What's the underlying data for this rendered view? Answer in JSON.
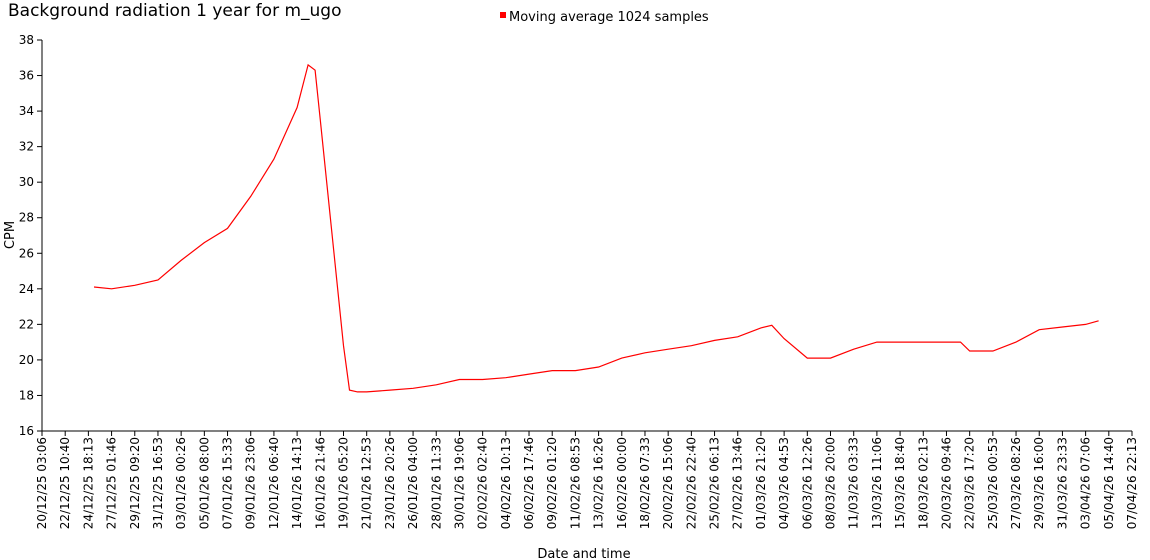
{
  "chart_data": {
    "type": "line",
    "title": "Background radiation 1 year for m_ugo",
    "x_label": "Date and time",
    "y_label": "CPM",
    "series": [
      {
        "name": "Moving average 1024 samples",
        "color": "#ff0000",
        "x": [
          "25/12/25 07:36",
          "27/12/25 01:46",
          "29/12/25 09:20",
          "31/12/25 16:53",
          "03/01/26 00:26",
          "05/01/26 08:00",
          "07/01/26 15:33",
          "09/01/26 23:06",
          "12/01/26 06:40",
          "14/01/26 14:13",
          "15/01/26 16:31",
          "16/01/26 09:19",
          "16/01/26 21:46",
          "19/01/26 05:20",
          "19/01/26 19:44",
          "20/01/26 14:50",
          "21/01/26 12:53",
          "23/01/26 20:26",
          "26/01/26 04:00",
          "28/01/26 11:33",
          "30/01/26 19:06",
          "02/02/26 02:40",
          "04/02/26 10:13",
          "06/02/26 17:46",
          "09/02/26 01:20",
          "11/02/26 08:53",
          "13/02/26 16:26",
          "16/02/26 00:00",
          "18/02/26 07:33",
          "20/02/26 15:06",
          "22/02/26 22:40",
          "25/02/26 06:13",
          "27/02/26 13:46",
          "01/03/26 21:20",
          "02/03/26 23:20",
          "04/03/26 04:53",
          "06/03/26 12:26",
          "08/03/26 20:00",
          "11/03/26 03:33",
          "13/03/26 11:06",
          "15/03/26 18:40",
          "18/03/26 02:13",
          "20/03/26 09:46",
          "21/03/26 19:16",
          "22/03/26 17:20",
          "25/03/26 00:53",
          "27/03/26 08:26",
          "29/03/26 16:00",
          "31/03/26 23:33",
          "03/04/26 07:06",
          "04/04/26 14:13"
        ],
        "values": [
          24.1,
          24.0,
          24.2,
          24.5,
          25.6,
          26.6,
          27.4,
          29.2,
          31.3,
          34.2,
          36.6,
          36.3,
          33.5,
          20.8,
          18.3,
          18.2,
          18.2,
          18.3,
          18.4,
          18.6,
          18.9,
          18.9,
          19.0,
          19.2,
          19.4,
          19.4,
          19.6,
          20.1,
          20.4,
          20.6,
          20.8,
          21.1,
          21.3,
          21.8,
          21.95,
          21.2,
          20.1,
          20.1,
          20.6,
          21.0,
          21.0,
          21.0,
          21.0,
          21.0,
          20.5,
          20.5,
          21.0,
          21.7,
          21.85,
          22.0,
          22.2
        ]
      }
    ],
    "xlim": [
      "20/12/25 03:06",
      "07/04/26 22:13"
    ],
    "xticks": [
      "20/12/25 03:06",
      "22/12/25 10:40",
      "24/12/25 18:13",
      "27/12/25 01:46",
      "29/12/25 09:20",
      "31/12/25 16:53",
      "03/01/26 00:26",
      "05/01/26 08:00",
      "07/01/26 15:33",
      "09/01/26 23:06",
      "12/01/26 06:40",
      "14/01/26 14:13",
      "16/01/26 21:46",
      "19/01/26 05:20",
      "21/01/26 12:53",
      "23/01/26 20:26",
      "26/01/26 04:00",
      "28/01/26 11:33",
      "30/01/26 19:06",
      "02/02/26 02:40",
      "04/02/26 10:13",
      "06/02/26 17:46",
      "09/02/26 01:20",
      "11/02/26 08:53",
      "13/02/26 16:26",
      "16/02/26 00:00",
      "18/02/26 07:33",
      "20/02/26 15:06",
      "22/02/26 22:40",
      "25/02/26 06:13",
      "27/02/26 13:46",
      "01/03/26 21:20",
      "04/03/26 04:53",
      "06/03/26 12:26",
      "08/03/26 20:00",
      "11/03/26 03:33",
      "13/03/26 11:06",
      "15/03/26 18:40",
      "18/03/26 02:13",
      "20/03/26 09:46",
      "22/03/26 17:20",
      "25/03/26 00:53",
      "27/03/26 08:26",
      "29/03/26 16:00",
      "31/03/26 23:33",
      "03/04/26 07:06",
      "05/04/26 14:40",
      "07/04/26 22:13"
    ],
    "ylim": [
      16,
      38
    ],
    "yticks": [
      16,
      18,
      20,
      22,
      24,
      26,
      28,
      30,
      32,
      34,
      36,
      38
    ],
    "grid": false
  }
}
